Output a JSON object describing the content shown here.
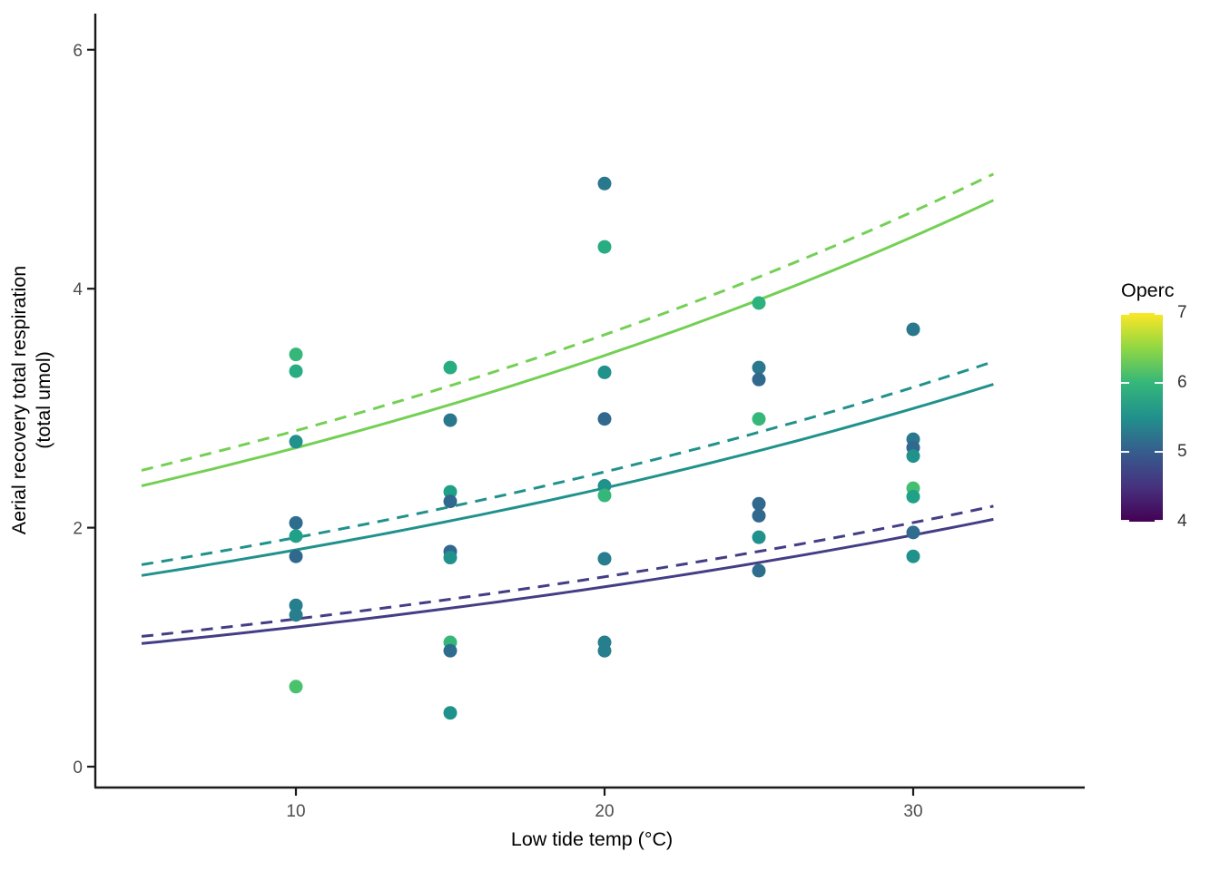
{
  "chart_data": {
    "type": "scatter",
    "title": "",
    "xlabel": "Low tide temp (°C)",
    "ylabel": "Aerial recovery total respiration (total umol)",
    "ylabel_line1": "Aerial recovery total respiration",
    "ylabel_line2": "(total umol)",
    "x_ticks": [
      10,
      20,
      30
    ],
    "y_ticks": [
      0,
      2,
      4,
      6
    ],
    "xlim": [
      3.4,
      35.6
    ],
    "ylim": [
      -0.2,
      6.3
    ],
    "grid": "off",
    "axis_color": "#1a1a1a",
    "tick_label_color": "#4d4d4d",
    "legend": {
      "title": "Operc",
      "type": "colorbar",
      "position": "right",
      "palette": "viridis",
      "range": [
        4,
        7
      ],
      "tick_labels": [
        7,
        6,
        5,
        4
      ],
      "gradient_bottom_to_top": [
        "#440154",
        "#46327E",
        "#365C8D",
        "#21918C",
        "#35B779",
        "#90D743",
        "#FDE725"
      ]
    },
    "curves": [
      {
        "name": "high-operc-dashed",
        "color": "#74D055",
        "style": "dashed",
        "shape": "exponential",
        "x_start": 5.0,
        "y_start": 2.48,
        "x_end": 32.6,
        "y_end": 4.96
      },
      {
        "name": "high-operc-solid",
        "color": "#74D055",
        "style": "solid",
        "shape": "exponential",
        "x_start": 5.0,
        "y_start": 2.35,
        "x_end": 32.6,
        "y_end": 4.74
      },
      {
        "name": "mid-operc-dashed",
        "color": "#21918C",
        "style": "dashed",
        "shape": "exponential",
        "x_start": 5.0,
        "y_start": 1.69,
        "x_end": 32.6,
        "y_end": 3.39
      },
      {
        "name": "mid-operc-solid",
        "color": "#21918C",
        "style": "solid",
        "shape": "exponential",
        "x_start": 5.0,
        "y_start": 1.6,
        "x_end": 32.6,
        "y_end": 3.2
      },
      {
        "name": "low-operc-dashed",
        "color": "#433E85",
        "style": "dashed",
        "shape": "exponential",
        "x_start": 5.0,
        "y_start": 1.09,
        "x_end": 32.6,
        "y_end": 2.18
      },
      {
        "name": "low-operc-solid",
        "color": "#433E85",
        "style": "solid",
        "shape": "exponential",
        "x_start": 5.0,
        "y_start": 1.03,
        "x_end": 32.6,
        "y_end": 2.07
      }
    ],
    "points": [
      {
        "x": 10,
        "y": 3.45,
        "color": "#35B779"
      },
      {
        "x": 10,
        "y": 3.31,
        "color": "#27AD81"
      },
      {
        "x": 10,
        "y": 2.72,
        "color": "#21918C"
      },
      {
        "x": 10,
        "y": 2.04,
        "color": "#2E6D8E"
      },
      {
        "x": 10,
        "y": 1.93,
        "color": "#1FA187"
      },
      {
        "x": 10,
        "y": 1.76,
        "color": "#31688E"
      },
      {
        "x": 10,
        "y": 1.35,
        "color": "#277F8E"
      },
      {
        "x": 10,
        "y": 1.27,
        "color": "#277F8E"
      },
      {
        "x": 10,
        "y": 0.67,
        "color": "#4AC16D"
      },
      {
        "x": 15,
        "y": 3.34,
        "color": "#27AD81"
      },
      {
        "x": 15,
        "y": 2.9,
        "color": "#2A788E"
      },
      {
        "x": 15,
        "y": 2.3,
        "color": "#1FA187"
      },
      {
        "x": 15,
        "y": 2.22,
        "color": "#31688E"
      },
      {
        "x": 15,
        "y": 1.8,
        "color": "#31688E"
      },
      {
        "x": 15,
        "y": 1.75,
        "color": "#21918C"
      },
      {
        "x": 15,
        "y": 1.04,
        "color": "#35B779"
      },
      {
        "x": 15,
        "y": 0.97,
        "color": "#2E6D8E"
      },
      {
        "x": 15,
        "y": 0.45,
        "color": "#21918C"
      },
      {
        "x": 20,
        "y": 4.88,
        "color": "#2A788E"
      },
      {
        "x": 20,
        "y": 4.35,
        "color": "#27AD81"
      },
      {
        "x": 20,
        "y": 3.3,
        "color": "#21918C"
      },
      {
        "x": 20,
        "y": 2.91,
        "color": "#31688E"
      },
      {
        "x": 20,
        "y": 2.35,
        "color": "#21918C"
      },
      {
        "x": 20,
        "y": 2.27,
        "color": "#35B779"
      },
      {
        "x": 20,
        "y": 1.74,
        "color": "#287D8E"
      },
      {
        "x": 20,
        "y": 1.04,
        "color": "#277F8E"
      },
      {
        "x": 20,
        "y": 0.97,
        "color": "#277F8E"
      },
      {
        "x": 25,
        "y": 3.88,
        "color": "#2DB27D"
      },
      {
        "x": 25,
        "y": 3.34,
        "color": "#2A788E"
      },
      {
        "x": 25,
        "y": 3.24,
        "color": "#31688E"
      },
      {
        "x": 25,
        "y": 2.91,
        "color": "#35B779"
      },
      {
        "x": 25,
        "y": 2.2,
        "color": "#31688E"
      },
      {
        "x": 25,
        "y": 2.1,
        "color": "#31688E"
      },
      {
        "x": 25,
        "y": 1.92,
        "color": "#21918C"
      },
      {
        "x": 25,
        "y": 1.64,
        "color": "#2E6D8E"
      },
      {
        "x": 30,
        "y": 3.66,
        "color": "#2A788E"
      },
      {
        "x": 30,
        "y": 2.74,
        "color": "#2A788E"
      },
      {
        "x": 30,
        "y": 2.67,
        "color": "#31688E"
      },
      {
        "x": 30,
        "y": 2.6,
        "color": "#21918C"
      },
      {
        "x": 30,
        "y": 2.33,
        "color": "#44BF70"
      },
      {
        "x": 30,
        "y": 2.26,
        "color": "#1FA187"
      },
      {
        "x": 30,
        "y": 1.96,
        "color": "#2E6D8E"
      },
      {
        "x": 30,
        "y": 1.76,
        "color": "#21918C"
      }
    ]
  }
}
